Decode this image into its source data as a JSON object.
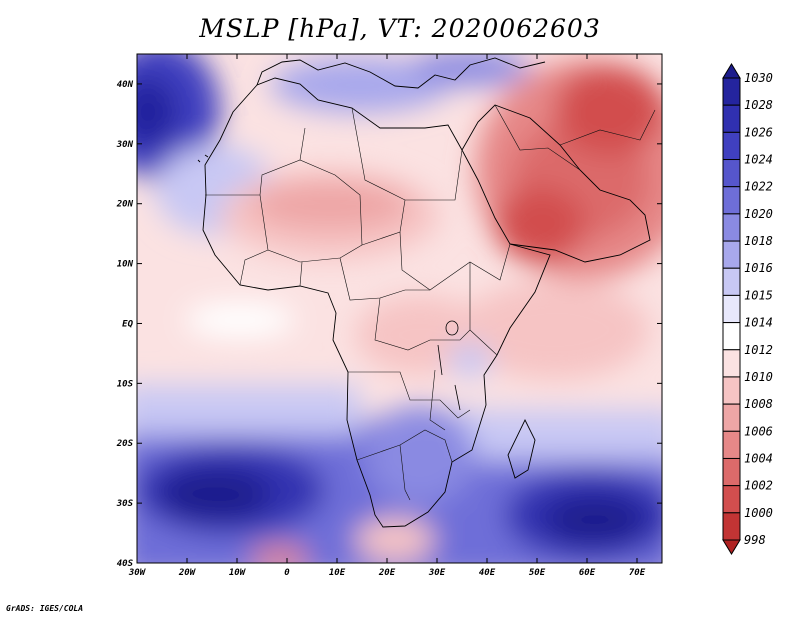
{
  "title": "MSLP [hPa], VT: 2020062603",
  "footer": "GrADS: IGES/COLA",
  "map": {
    "lon_range": [
      -30,
      75
    ],
    "lat_range": [
      -40,
      45
    ],
    "lat_labels": [
      "40N",
      "30N",
      "20N",
      "10N",
      "EQ",
      "10S",
      "20S",
      "30S",
      "40S"
    ],
    "lon_labels": [
      "30W",
      "20W",
      "10W",
      "0",
      "10E",
      "20E",
      "30E",
      "40E",
      "50E",
      "60E",
      "70E"
    ]
  },
  "colorbar": {
    "levels": [
      "1030",
      "1028",
      "1026",
      "1024",
      "1022",
      "1020",
      "1018",
      "1016",
      "1015",
      "1014",
      "1012",
      "1010",
      "1008",
      "1006",
      "1004",
      "1002",
      "1000",
      "998"
    ],
    "colors": [
      "#1c1c8c",
      "#24249e",
      "#3030b0",
      "#4040c0",
      "#5656cc",
      "#6e6ed8",
      "#8a8ae2",
      "#a8a8ec",
      "#c8c8f4",
      "#e8e8fc",
      "#ffffff",
      "#fbe2e2",
      "#f6c4c4",
      "#eea6a6",
      "#e68888",
      "#dc6a6a",
      "#d24e4e",
      "#c23434",
      "#b02222"
    ]
  }
}
